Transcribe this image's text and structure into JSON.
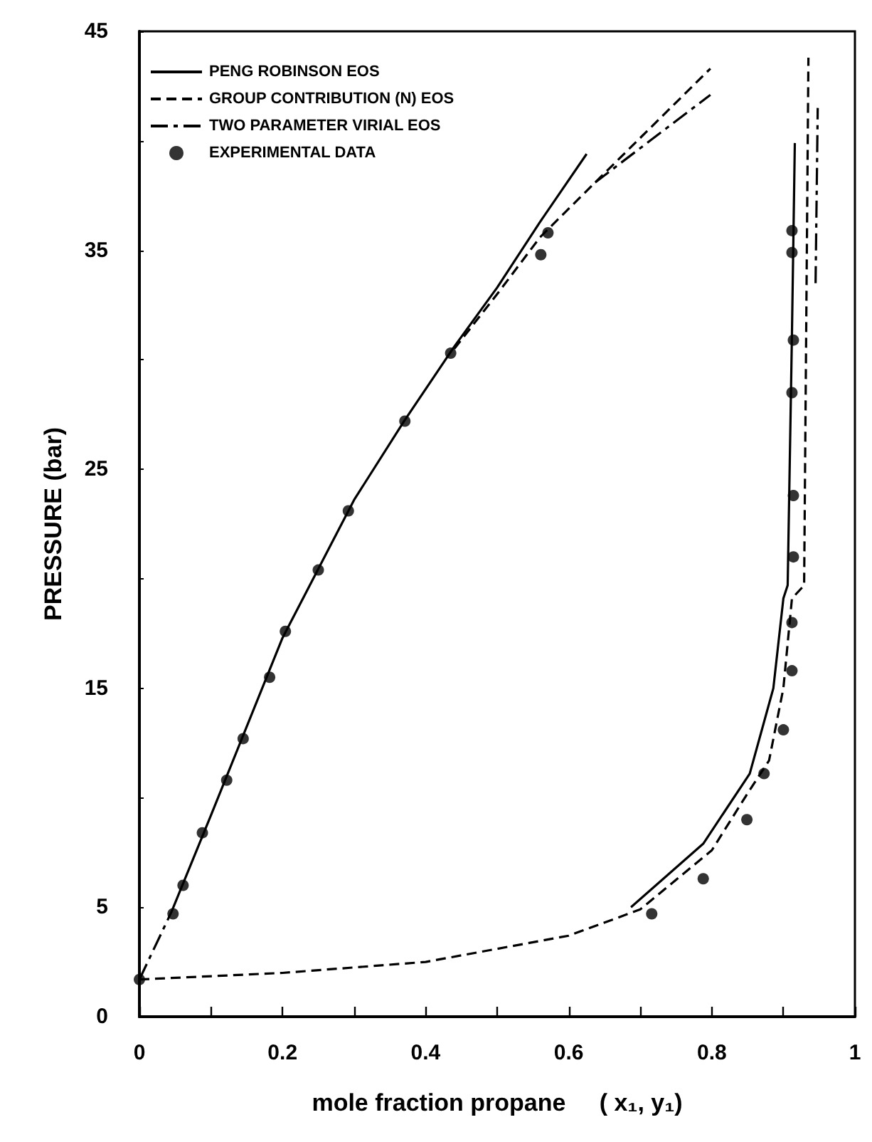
{
  "chart_data": {
    "type": "line",
    "xlabel": "mole fraction propane     ( x₁, y₁)",
    "ylabel": "PRESSURE (bar)",
    "xlim": [
      0,
      1
    ],
    "xticks": [
      0,
      {
        "value": 0.1,
        "label": null
      },
      0.2,
      {
        "value": 0.3,
        "label": null
      },
      0.4,
      {
        "value": 0.5,
        "label": null
      },
      0.6,
      {
        "value": 0.7,
        "label": null
      },
      0.8,
      {
        "value": 0.9,
        "label": null
      },
      1
    ],
    "ylim": [
      0,
      45
    ],
    "yticks": [
      0,
      5,
      {
        "value": 10,
        "label": null
      },
      15,
      {
        "value": 20,
        "label": null
      },
      25,
      {
        "value": 30,
        "label": null
      },
      35,
      {
        "value": 40,
        "label": null
      },
      45
    ],
    "grid": false,
    "legend": "top left",
    "series": [
      {
        "name": "PENG ROBINSON EOS",
        "color": "#000000",
        "line_style": "solid",
        "marker": "none",
        "x": [
          0.045,
          0.1,
          0.2,
          0.3,
          0.37,
          0.44,
          0.5,
          0.56,
          0.625,
          null,
          0.687,
          0.788,
          0.853,
          0.886,
          0.9,
          0.906,
          0.912,
          0.916
        ],
        "values": [
          4.8,
          9.2,
          17.3,
          23.6,
          27.2,
          30.6,
          33.3,
          36.3,
          39.4,
          null,
          5.0,
          7.9,
          11.1,
          15.0,
          19.1,
          19.7,
          31.2,
          39.9
        ]
      },
      {
        "name": "GROUP CONTRIBUTION (N) EOS",
        "color": "#000000",
        "line_style": "dashed",
        "marker": "none",
        "x": [
          0.44,
          0.5,
          0.56,
          0.637,
          0.798,
          null,
          0,
          0.2,
          0.4,
          0.6,
          0.7,
          0.8,
          0.85,
          0.88,
          0.9,
          0.912,
          0.929,
          0.935
        ],
        "values": [
          30.5,
          33.0,
          35.6,
          38.1,
          43.3,
          null,
          1.7,
          2.0,
          2.5,
          3.7,
          4.9,
          7.6,
          10.2,
          11.7,
          15.0,
          19.1,
          19.7,
          43.8
        ]
      },
      {
        "name": "TWO PARAMETER VIRIAL EOS",
        "color": "#000000",
        "line_style": "dashdot",
        "marker": "none",
        "x": [
          0,
          0.045,
          null,
          0.637,
          0.798,
          null,
          0.945,
          0.948
        ],
        "values": [
          1.7,
          4.8,
          null,
          38.1,
          42.1,
          null,
          33.5,
          41.5
        ]
      },
      {
        "name": "EXPERIMENTAL DATA",
        "type": "scatter",
        "color": "#000000",
        "marker": "circle",
        "x": [
          0,
          0.047,
          0.061,
          0.088,
          0.122,
          0.145,
          0.182,
          0.204,
          0.25,
          0.292,
          0.371,
          0.435,
          0.561,
          0.571,
          0.912,
          0.912,
          0.914,
          0.912,
          0.914,
          0.914,
          0.912,
          0.912,
          0.9,
          0.873,
          0.849,
          0.788,
          0.716
        ],
        "values": [
          1.7,
          4.7,
          6.0,
          8.4,
          10.8,
          12.7,
          15.5,
          17.6,
          20.4,
          23.1,
          27.2,
          30.3,
          34.8,
          35.8,
          35.9,
          34.9,
          30.9,
          28.5,
          23.8,
          21.0,
          18.0,
          15.8,
          13.1,
          11.1,
          9.0,
          6.3,
          4.7
        ]
      }
    ]
  }
}
